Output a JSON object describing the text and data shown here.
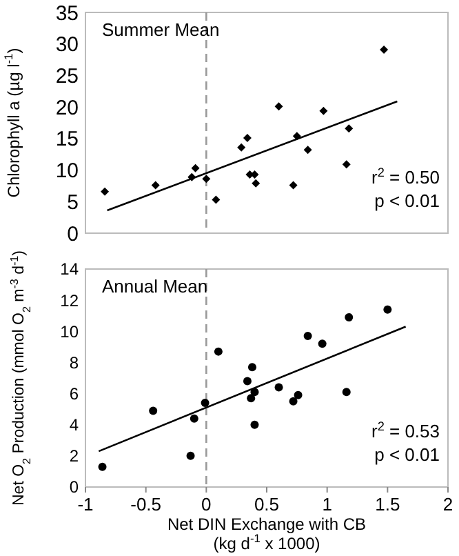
{
  "chart_data": [
    {
      "type": "scatter",
      "ylabel": "Chlorophyll a (µg l$^{-1}$)",
      "annotations": [
        "Summer Mean",
        "r$^{2}$ = 0.50",
        "p < 0.01"
      ],
      "xlim": [
        -1,
        2
      ],
      "ylim": [
        0,
        35
      ],
      "yticks": [
        0,
        5,
        10,
        15,
        20,
        25,
        30,
        35
      ],
      "tick_labels": "y",
      "grid": false,
      "ref_lines": [
        {
          "axis": "x",
          "value": 0,
          "color": "#999999",
          "line_style": "dashed"
        }
      ],
      "series": [
        {
          "color": "#000000",
          "marker": "diamond",
          "x": [
            -0.84,
            -0.42,
            -0.12,
            -0.09,
            0.0,
            0.08,
            0.29,
            0.34,
            0.36,
            0.4,
            0.41,
            0.6,
            0.72,
            0.75,
            0.84,
            0.97,
            1.16,
            1.18,
            1.47
          ],
          "values": [
            6.6,
            7.6,
            8.9,
            10.3,
            8.6,
            5.3,
            13.6,
            15.1,
            9.3,
            9.3,
            7.9,
            20.1,
            7.6,
            15.4,
            13.2,
            19.4,
            10.9,
            16.6,
            29.1
          ]
        },
        {
          "type": "line",
          "color": "#000000",
          "marker": "none",
          "line_style": "solid",
          "x": [
            -0.82,
            1.58
          ],
          "values": [
            3.6,
            20.9
          ]
        }
      ]
    },
    {
      "type": "scatter",
      "ylabel": "Net O$_{2}$ Production (mmol O$_{2}$ m$^{-3}$ d$^{-1}$)",
      "xlabel": "Net DIN Exchange with CB\n(kg d$^{-1}$ x 1000)",
      "annotations": [
        "Annual Mean",
        "r$^{2}$ = 0.53",
        "p < 0.01"
      ],
      "xlim": [
        -1,
        2
      ],
      "xticks": [
        -1,
        -0.5,
        0,
        0.5,
        1,
        1.5,
        2
      ],
      "ylim": [
        0,
        14
      ],
      "yticks": [
        0,
        2,
        4,
        6,
        8,
        10,
        12,
        14
      ],
      "grid": false,
      "ref_lines": [
        {
          "axis": "x",
          "value": 0,
          "color": "#999999",
          "line_style": "dashed"
        }
      ],
      "series": [
        {
          "color": "#000000",
          "marker": "circle",
          "x": [
            -0.86,
            -0.44,
            -0.13,
            -0.1,
            -0.01,
            0.1,
            0.34,
            0.37,
            0.38,
            0.4,
            0.4,
            0.6,
            0.72,
            0.76,
            0.84,
            0.96,
            1.16,
            1.18,
            1.5
          ],
          "values": [
            1.3,
            4.9,
            2.0,
            4.4,
            5.4,
            8.7,
            6.8,
            5.7,
            7.7,
            6.1,
            4.0,
            6.4,
            5.5,
            5.9,
            9.7,
            9.2,
            6.1,
            10.9,
            11.4
          ]
        },
        {
          "type": "line",
          "color": "#000000",
          "marker": "none",
          "line_style": "solid",
          "x": [
            -0.89,
            1.65
          ],
          "values": [
            2.3,
            10.3
          ]
        }
      ]
    }
  ]
}
